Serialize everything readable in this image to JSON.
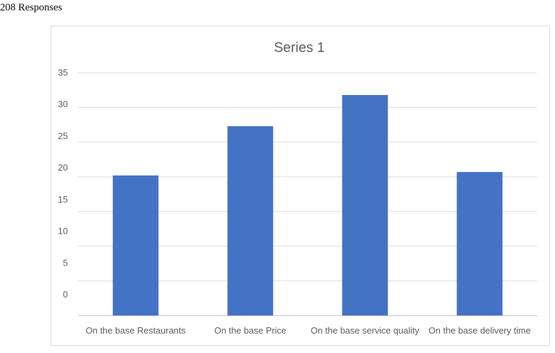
{
  "header": "208 Responses",
  "chart_data": {
    "type": "bar",
    "title": "Series 1",
    "categories": [
      "On the base Restaurants",
      "On the base Price",
      "On the base service quality",
      "On the base delivery time"
    ],
    "values": [
      20.2,
      27.3,
      31.8,
      20.7
    ],
    "color": "#4472c4",
    "ylim": [
      0,
      35
    ],
    "yticks": [
      0,
      5,
      10,
      15,
      20,
      25,
      30,
      35
    ],
    "grid": true
  }
}
